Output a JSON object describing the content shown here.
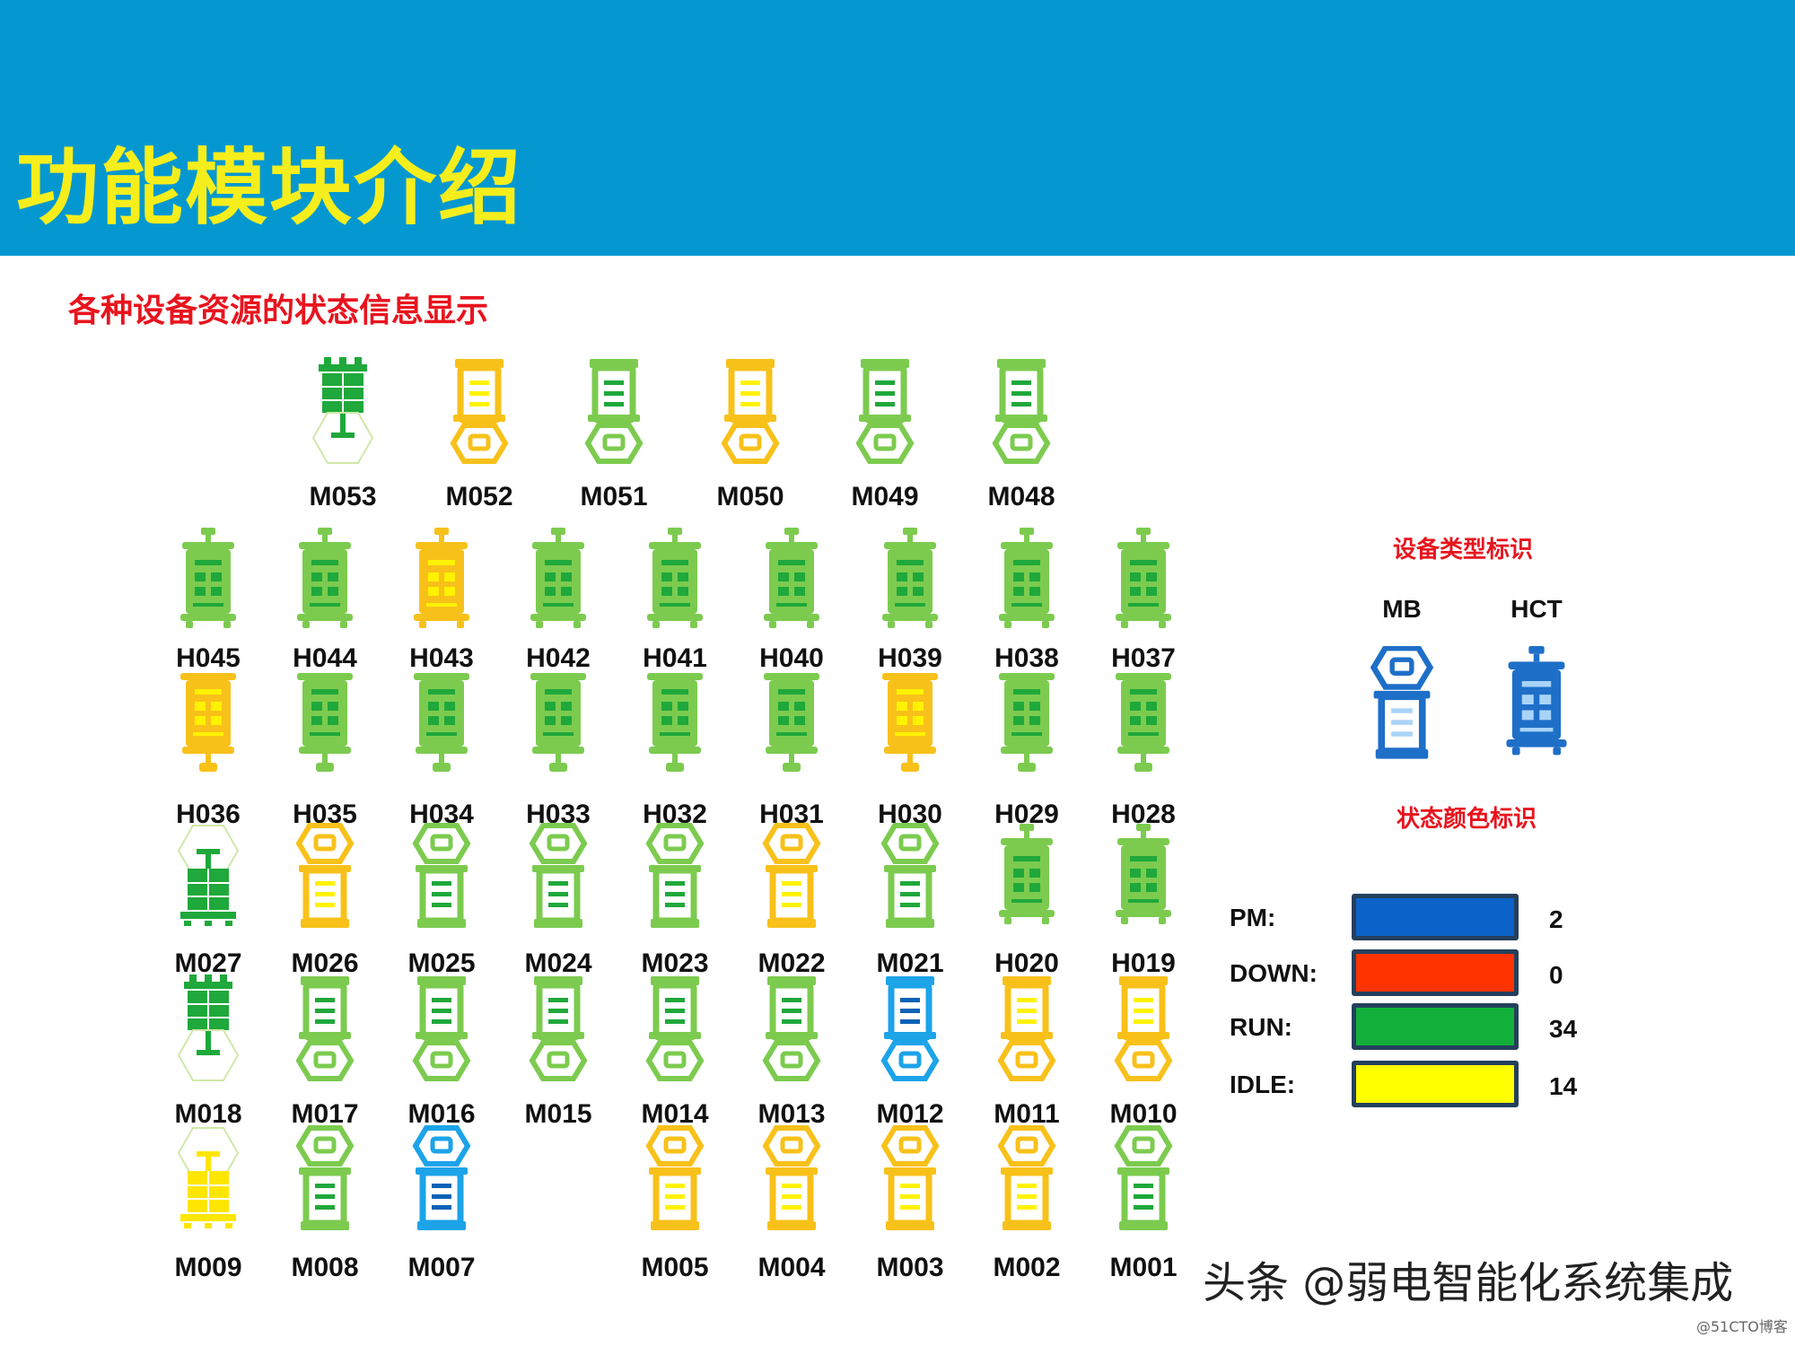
{
  "header": {
    "title": "功能模块介绍"
  },
  "subtitle": "各种设备资源的状态信息显示",
  "colors": {
    "header_bg": "#0598d0",
    "title_text": "#f5ee1c",
    "subtitle_text": "#e8141e",
    "run_device": "#7ccb4f",
    "run_fill": "#1fa83b",
    "idle_device": "#f8c11a",
    "idle_fill": "#fff200",
    "pm_device": "#1ca3e8",
    "pm_fill": "#0b63b5"
  },
  "device_rows": [
    {
      "devices": [
        {
          "id": "M053",
          "type": "board",
          "status": "run"
        },
        {
          "id": "M052",
          "type": "mb",
          "status": "idle"
        },
        {
          "id": "M051",
          "type": "mb",
          "status": "run"
        },
        {
          "id": "M050",
          "type": "mb",
          "status": "idle"
        },
        {
          "id": "M049",
          "type": "mb",
          "status": "run"
        },
        {
          "id": "M048",
          "type": "mb",
          "status": "run"
        }
      ]
    },
    {
      "devices": [
        {
          "id": "H045",
          "type": "hct",
          "status": "run"
        },
        {
          "id": "H044",
          "type": "hct",
          "status": "run"
        },
        {
          "id": "H043",
          "type": "hct",
          "status": "idle"
        },
        {
          "id": "H042",
          "type": "hct",
          "status": "run"
        },
        {
          "id": "H041",
          "type": "hct",
          "status": "run"
        },
        {
          "id": "H040",
          "type": "hct",
          "status": "run"
        },
        {
          "id": "H039",
          "type": "hct",
          "status": "run"
        },
        {
          "id": "H038",
          "type": "hct",
          "status": "run"
        },
        {
          "id": "H037",
          "type": "hct",
          "status": "run"
        }
      ]
    },
    {
      "devices": [
        {
          "id": "H036",
          "type": "hct_inv",
          "status": "idle"
        },
        {
          "id": "H035",
          "type": "hct_inv",
          "status": "run"
        },
        {
          "id": "H034",
          "type": "hct_inv",
          "status": "run"
        },
        {
          "id": "H033",
          "type": "hct_inv",
          "status": "run"
        },
        {
          "id": "H032",
          "type": "hct_inv",
          "status": "run"
        },
        {
          "id": "H031",
          "type": "hct_inv",
          "status": "run"
        },
        {
          "id": "H030",
          "type": "hct_inv",
          "status": "idle"
        },
        {
          "id": "H029",
          "type": "hct_inv",
          "status": "run"
        },
        {
          "id": "H028",
          "type": "hct_inv",
          "status": "run"
        }
      ]
    },
    {
      "devices": [
        {
          "id": "M027",
          "type": "board_inv",
          "status": "run"
        },
        {
          "id": "M026",
          "type": "mb_inv",
          "status": "idle"
        },
        {
          "id": "M025",
          "type": "mb_inv",
          "status": "run"
        },
        {
          "id": "M024",
          "type": "mb_inv",
          "status": "run"
        },
        {
          "id": "M023",
          "type": "mb_inv",
          "status": "run"
        },
        {
          "id": "M022",
          "type": "mb_inv",
          "status": "idle"
        },
        {
          "id": "M021",
          "type": "mb_inv",
          "status": "run"
        },
        {
          "id": "H020",
          "type": "hct",
          "status": "run"
        },
        {
          "id": "H019",
          "type": "hct",
          "status": "run"
        }
      ]
    },
    {
      "devices": [
        {
          "id": "M018",
          "type": "board",
          "status": "run"
        },
        {
          "id": "M017",
          "type": "mb",
          "status": "run"
        },
        {
          "id": "M016",
          "type": "mb",
          "status": "run"
        },
        {
          "id": "M015",
          "type": "mb",
          "status": "run"
        },
        {
          "id": "M014",
          "type": "mb",
          "status": "run"
        },
        {
          "id": "M013",
          "type": "mb",
          "status": "run"
        },
        {
          "id": "M012",
          "type": "mb",
          "status": "pm"
        },
        {
          "id": "M011",
          "type": "mb",
          "status": "idle"
        },
        {
          "id": "M010",
          "type": "mb",
          "status": "idle"
        }
      ]
    },
    {
      "devices": [
        {
          "id": "M009",
          "type": "board_inv",
          "status": "idle"
        },
        {
          "id": "M008",
          "type": "mb_inv",
          "status": "run"
        },
        {
          "id": "M007",
          "type": "mb_inv",
          "status": "pm"
        },
        {
          "id": "M005",
          "type": "mb_inv",
          "status": "idle"
        },
        {
          "id": "M004",
          "type": "mb_inv",
          "status": "idle"
        },
        {
          "id": "M003",
          "type": "mb_inv",
          "status": "idle"
        },
        {
          "id": "M002",
          "type": "mb_inv",
          "status": "idle"
        },
        {
          "id": "M001",
          "type": "mb_inv",
          "status": "run"
        }
      ]
    }
  ],
  "legend": {
    "type_title": "设备类型标识",
    "types": [
      {
        "label": "MB",
        "icon": "mb-device-icon"
      },
      {
        "label": "HCT",
        "icon": "hct-device-icon"
      }
    ],
    "status_title": "状态颜色标识",
    "statuses": [
      {
        "label": "PM:",
        "color": "#0b63c9",
        "count": "2"
      },
      {
        "label": "DOWN:",
        "color": "#ff3300",
        "count": "0"
      },
      {
        "label": "RUN:",
        "color": "#12b03a",
        "count": "34"
      },
      {
        "label": "IDLE:",
        "color": "#ffff00",
        "count": "14"
      }
    ]
  },
  "watermark": "头条 @弱电智能化系统集成",
  "watermark_small": "@51CTO博客"
}
